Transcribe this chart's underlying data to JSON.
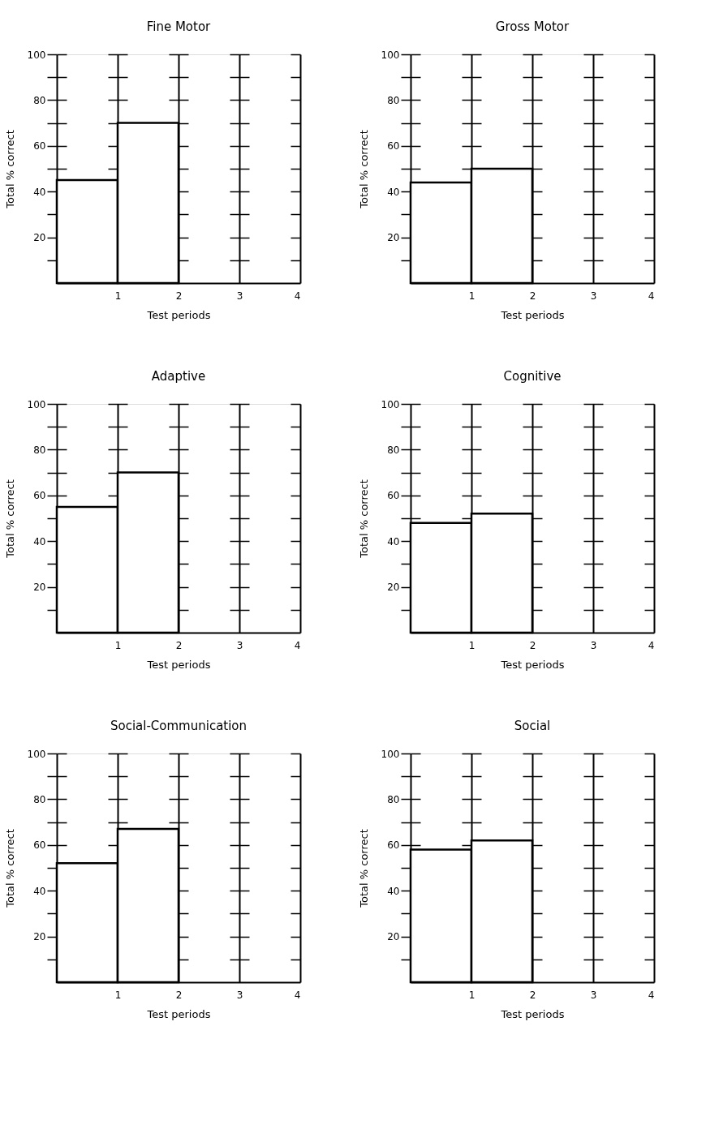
{
  "chart_data": [
    {
      "type": "histogram",
      "title": "Fine Motor",
      "xlabel": "Test periods",
      "ylabel": "Total % correct",
      "bins": [
        0,
        1,
        2
      ],
      "values": [
        45,
        70
      ],
      "color": "#000000",
      "xlim": [
        0,
        4
      ],
      "xticks": [
        1,
        2,
        3,
        4
      ],
      "ylim": [
        0,
        100
      ],
      "yticks": [
        {
          "value": 10,
          "label": null
        },
        20,
        {
          "value": 30,
          "label": null
        },
        40,
        {
          "value": 50,
          "label": null
        },
        60,
        {
          "value": 70,
          "label": null
        },
        80,
        {
          "value": 90,
          "label": null
        },
        100
      ],
      "grid": true
    },
    {
      "type": "histogram",
      "title": "Gross Motor",
      "xlabel": "Test periods",
      "ylabel": "Total % correct",
      "bins": [
        0,
        1,
        2
      ],
      "values": [
        44,
        50
      ],
      "color": "#000000",
      "xlim": [
        0,
        4
      ],
      "xticks": [
        1,
        2,
        3,
        4
      ],
      "ylim": [
        0,
        100
      ],
      "yticks": [
        {
          "value": 10,
          "label": null
        },
        20,
        {
          "value": 30,
          "label": null
        },
        40,
        {
          "value": 50,
          "label": null
        },
        60,
        {
          "value": 70,
          "label": null
        },
        80,
        {
          "value": 90,
          "label": null
        },
        100
      ],
      "grid": true
    },
    {
      "type": "histogram",
      "title": "Adaptive",
      "xlabel": "Test periods",
      "ylabel": "Total % correct",
      "bins": [
        0,
        1,
        2
      ],
      "values": [
        55,
        70
      ],
      "color": "#000000",
      "xlim": [
        0,
        4
      ],
      "xticks": [
        1,
        2,
        3,
        4
      ],
      "ylim": [
        0,
        100
      ],
      "yticks": [
        {
          "value": 10,
          "label": null
        },
        20,
        {
          "value": 30,
          "label": null
        },
        40,
        {
          "value": 50,
          "label": null
        },
        60,
        {
          "value": 70,
          "label": null
        },
        80,
        {
          "value": 90,
          "label": null
        },
        100
      ],
      "grid": true
    },
    {
      "type": "histogram",
      "title": "Cognitive",
      "xlabel": "Test periods",
      "ylabel": "Total % correct",
      "bins": [
        0,
        1,
        2
      ],
      "values": [
        48,
        52
      ],
      "color": "#000000",
      "xlim": [
        0,
        4
      ],
      "xticks": [
        1,
        2,
        3,
        4
      ],
      "ylim": [
        0,
        100
      ],
      "yticks": [
        {
          "value": 10,
          "label": null
        },
        20,
        {
          "value": 30,
          "label": null
        },
        40,
        {
          "value": 50,
          "label": null
        },
        60,
        {
          "value": 70,
          "label": null
        },
        80,
        {
          "value": 90,
          "label": null
        },
        100
      ],
      "grid": true
    },
    {
      "type": "histogram",
      "title": "Social-Communication",
      "xlabel": "Test periods",
      "ylabel": "Total % correct",
      "bins": [
        0,
        1,
        2
      ],
      "values": [
        52,
        67
      ],
      "color": "#000000",
      "xlim": [
        0,
        4
      ],
      "xticks": [
        1,
        2,
        3,
        4
      ],
      "ylim": [
        0,
        100
      ],
      "yticks": [
        {
          "value": 10,
          "label": null
        },
        20,
        {
          "value": 30,
          "label": null
        },
        40,
        {
          "value": 50,
          "label": null
        },
        60,
        {
          "value": 70,
          "label": null
        },
        80,
        {
          "value": 90,
          "label": null
        },
        100
      ],
      "grid": true
    },
    {
      "type": "histogram",
      "title": "Social",
      "xlabel": "Test periods",
      "ylabel": "Total % correct",
      "bins": [
        0,
        1,
        2
      ],
      "values": [
        58,
        62
      ],
      "color": "#000000",
      "xlim": [
        0,
        4
      ],
      "xticks": [
        1,
        2,
        3,
        4
      ],
      "ylim": [
        0,
        100
      ],
      "yticks": [
        {
          "value": 10,
          "label": null
        },
        20,
        {
          "value": 30,
          "label": null
        },
        40,
        {
          "value": 50,
          "label": null
        },
        60,
        {
          "value": 70,
          "label": null
        },
        80,
        {
          "value": 90,
          "label": null
        },
        100
      ],
      "grid": true
    }
  ]
}
